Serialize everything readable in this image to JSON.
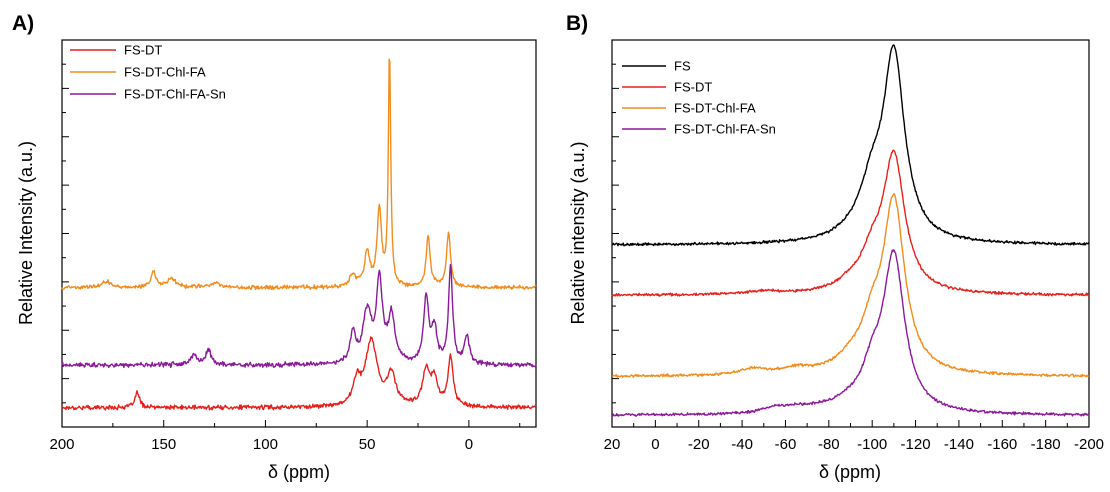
{
  "chart_data": [
    {
      "panel": "A)",
      "type": "line",
      "xlabel": "δ (ppm)",
      "ylabel": "Relative Intensity (a.u.)",
      "xlim": [
        200,
        -33
      ],
      "x_reversed": true,
      "x_ticks": [
        200,
        150,
        100,
        50,
        0
      ],
      "ylim": [
        0,
        100
      ],
      "y_ticks_shown": false,
      "legend_position": "top-left",
      "series": [
        {
          "name": "FS-DT",
          "color": "#e8201c",
          "baseline": 5,
          "noise": 0.5,
          "peaks": [
            [
              163,
              4,
              1.3
            ],
            [
              55,
              6,
              2
            ],
            [
              48,
              17,
              3.5
            ],
            [
              38,
              8,
              2.5
            ],
            [
              21,
              9,
              2
            ],
            [
              17,
              7,
              2
            ],
            [
              9,
              13,
              1.5
            ]
          ]
        },
        {
          "name": "FS-DT-Chl-FA",
          "color": "#f28c1e",
          "baseline": 36,
          "noise": 0.45,
          "peaks": [
            [
              155,
              4,
              1.5
            ],
            [
              146,
              2,
              3
            ],
            [
              178,
              1.5,
              3
            ],
            [
              125,
              1,
              4
            ],
            [
              57,
              3,
              2
            ],
            [
              50,
              9,
              1.5
            ],
            [
              44,
              20,
              1.3
            ],
            [
              39,
              60,
              0.7
            ],
            [
              20,
              13,
              1.2
            ],
            [
              10,
              14,
              1.2
            ]
          ]
        },
        {
          "name": "FS-DT-Chl-FA-Sn",
          "color": "#8b1a9a",
          "baseline": 16,
          "noise": 0.55,
          "peaks": [
            [
              128,
              4,
              1.5
            ],
            [
              135,
              2.5,
              2
            ],
            [
              57,
              8,
              1.5
            ],
            [
              50,
              13,
              2.5
            ],
            [
              44,
              21,
              1.8
            ],
            [
              38,
              12,
              2
            ],
            [
              21,
              17,
              1.5
            ],
            [
              17,
              9,
              1.5
            ],
            [
              9,
              25,
              1.2
            ],
            [
              1,
              7,
              1.5
            ]
          ]
        }
      ]
    },
    {
      "panel": "B)",
      "type": "line",
      "xlabel": "δ (ppm)",
      "ylabel": "Relative intensity (a.u.)",
      "xlim": [
        20,
        -200
      ],
      "x_reversed": true,
      "x_ticks": [
        20,
        0,
        -20,
        -40,
        -60,
        -80,
        -100,
        -120,
        -140,
        -160,
        -180,
        -200
      ],
      "ylim": [
        0,
        100
      ],
      "y_ticks_shown": false,
      "legend_position": "top-left",
      "series": [
        {
          "name": "FS",
          "color": "#000000",
          "baseline": 47,
          "noise": 0.3,
          "peaks": [
            [
              -110,
              48,
              6
            ],
            [
              -100,
              10,
              6
            ],
            [
              -95,
              3,
              10
            ]
          ]
        },
        {
          "name": "FS-DT",
          "color": "#e8201c",
          "baseline": 34,
          "noise": 0.3,
          "peaks": [
            [
              -110,
              35,
              6
            ],
            [
              -100,
              8,
              6
            ],
            [
              -90,
              2,
              8
            ],
            [
              -50,
              0.8,
              10
            ]
          ]
        },
        {
          "name": "FS-DT-Chl-FA",
          "color": "#f28c1e",
          "baseline": 13,
          "noise": 0.3,
          "peaks": [
            [
              -110,
              44,
              6
            ],
            [
              -100,
              10,
              6
            ],
            [
              -90,
              3,
              8
            ],
            [
              -45,
              1.5,
              8
            ],
            [
              -65,
              1.5,
              8
            ]
          ]
        },
        {
          "name": "FS-DT-Chl-FA-Sn",
          "color": "#8b1a9a",
          "baseline": 3,
          "noise": 0.3,
          "peaks": [
            [
              -110,
              40,
              6
            ],
            [
              -100,
              9,
              6
            ],
            [
              -88,
              2,
              8
            ],
            [
              -55,
              1.5,
              6
            ],
            [
              -65,
              1.2,
              6
            ],
            [
              -75,
              0.8,
              6
            ]
          ]
        }
      ]
    }
  ]
}
